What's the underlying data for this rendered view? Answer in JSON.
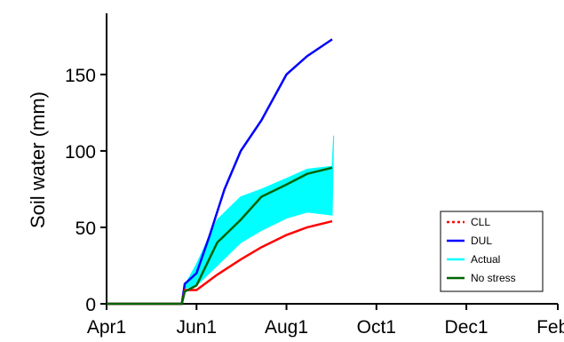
{
  "chart_data": {
    "type": "line",
    "title": "",
    "ylabel": "Soil water (mm)",
    "xlabel": "",
    "ylim": [
      0,
      190
    ],
    "xlim": [
      "Apr1",
      "Feb1"
    ],
    "x_ticks": [
      "Apr1",
      "Jun1",
      "Aug1",
      "Oct1",
      "Dec1",
      "Feb1"
    ],
    "y_ticks": [
      0,
      50,
      100,
      150
    ],
    "grid": false,
    "legend_position": "bottom-right",
    "series": [
      {
        "name": "CLL",
        "color": "#ff0000",
        "style": "dotted",
        "points": [
          [
            "Apr1",
            0
          ],
          [
            "May22",
            0
          ],
          [
            "May24",
            9
          ],
          [
            "Jun1",
            9
          ],
          [
            "Jun15",
            19
          ],
          [
            "Jul1",
            29
          ],
          [
            "Jul15",
            37
          ],
          [
            "Aug1",
            45
          ],
          [
            "Aug15",
            50
          ],
          [
            "Sep1",
            54
          ]
        ]
      },
      {
        "name": "DUL",
        "color": "#0000ff",
        "style": "solid",
        "points": [
          [
            "Apr1",
            0
          ],
          [
            "May22",
            0
          ],
          [
            "May24",
            13
          ],
          [
            "Jun1",
            20
          ],
          [
            "Jun10",
            45
          ],
          [
            "Jun20",
            75
          ],
          [
            "Jul1",
            100
          ],
          [
            "Jul15",
            120
          ],
          [
            "Aug1",
            150
          ],
          [
            "Aug15",
            162
          ],
          [
            "Sep1",
            173
          ]
        ]
      },
      {
        "name": "Actual",
        "color": "#00ffff",
        "style": "band",
        "lower": [
          [
            "May24",
            10
          ],
          [
            "Jun1",
            12
          ],
          [
            "Jun15",
            25
          ],
          [
            "Jul1",
            40
          ],
          [
            "Jul15",
            48
          ],
          [
            "Aug1",
            56
          ],
          [
            "Aug15",
            60
          ],
          [
            "Sep1",
            58
          ]
        ],
        "upper": [
          [
            "May24",
            12
          ],
          [
            "Jun1",
            26
          ],
          [
            "Jun15",
            55
          ],
          [
            "Jul1",
            70
          ],
          [
            "Jul15",
            75
          ],
          [
            "Aug1",
            82
          ],
          [
            "Aug15",
            88
          ],
          [
            "Sep1",
            90
          ],
          [
            "Sep2",
            110
          ]
        ]
      },
      {
        "name": "No stress",
        "color": "#006400",
        "style": "solid",
        "points": [
          [
            "Apr1",
            0
          ],
          [
            "May22",
            0
          ],
          [
            "May24",
            8
          ],
          [
            "Jun1",
            12
          ],
          [
            "Jun15",
            40
          ],
          [
            "Jul1",
            55
          ],
          [
            "Jul15",
            70
          ],
          [
            "Aug1",
            78
          ],
          [
            "Aug15",
            85
          ],
          [
            "Sep1",
            89
          ]
        ]
      }
    ]
  },
  "legend": {
    "items": [
      {
        "label": "CLL",
        "color": "#ff0000",
        "style": "dotted"
      },
      {
        "label": "DUL",
        "color": "#0000ff",
        "style": "solid"
      },
      {
        "label": "Actual",
        "color": "#00ffff",
        "style": "solid"
      },
      {
        "label": "No stress",
        "color": "#006400",
        "style": "solid"
      }
    ]
  }
}
